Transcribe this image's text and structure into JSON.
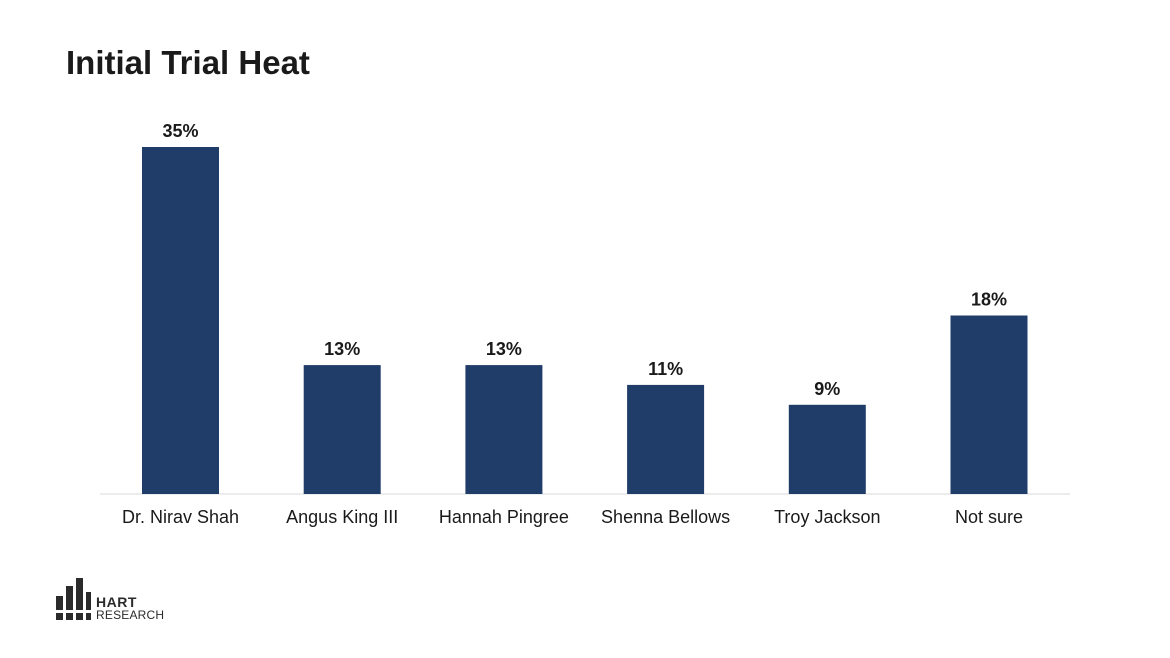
{
  "slide": {
    "title": "Initial Trial Heat"
  },
  "chart_data": {
    "type": "bar",
    "title": "Initial Trial Heat",
    "categories": [
      "Dr. Nirav Shah",
      "Angus King III",
      "Hannah Pingree",
      "Shenna Bellows",
      "Troy Jackson",
      "Not sure"
    ],
    "values": [
      35,
      13,
      13,
      11,
      9,
      18
    ],
    "value_labels": [
      "35%",
      "13%",
      "13%",
      "11%",
      "9%",
      "18%"
    ],
    "unit": "%",
    "ylim": [
      0,
      35
    ],
    "grid": false,
    "legend": "none",
    "bar_color": "#1f3d68",
    "baseline_color": "#d9d9d9"
  },
  "logo": {
    "line1": "HART",
    "line2": "RESEARCH"
  }
}
